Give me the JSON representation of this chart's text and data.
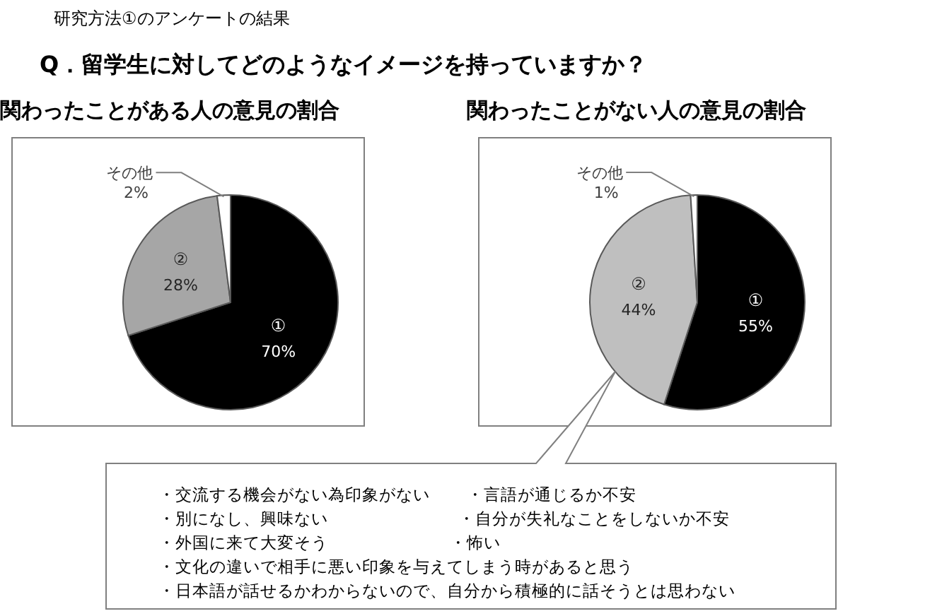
{
  "chart_data": [
    {
      "type": "pie",
      "title": "関わったことがある人の意見の割合",
      "annotations": [
        "研究方法①のアンケートの結果",
        "Q．留学生に対してどのようなイメージを持っていますか？"
      ],
      "categories": [
        "①",
        "②",
        "その他"
      ],
      "values": [
        70,
        28,
        2
      ],
      "value_labels": [
        "70%",
        "28%",
        "2%"
      ],
      "colors": [
        "#000000",
        "#a6a6a6",
        "#ffffff"
      ],
      "legend": false
    },
    {
      "type": "pie",
      "title": "関わったことがない人の意見の割合",
      "annotations": [
        "・交流する機会がない為印象がない",
        "・言語が通じるか不安",
        "・別になし、興味ない",
        "・自分が失礼なことをしないか不安",
        "・外国に来て大変そう",
        "・怖い",
        "・文化の違いで相手に悪い印象を与えてしまう時があると思う",
        "・日本語が話せるかわからないので、自分から積極的に話そうとは思わない"
      ],
      "categories": [
        "①",
        "②",
        "その他"
      ],
      "values": [
        55,
        44,
        1
      ],
      "value_labels": [
        "55%",
        "44%",
        "1%"
      ],
      "colors": [
        "#000000",
        "#bfbfbf",
        "#ffffff"
      ],
      "legend": false
    }
  ]
}
